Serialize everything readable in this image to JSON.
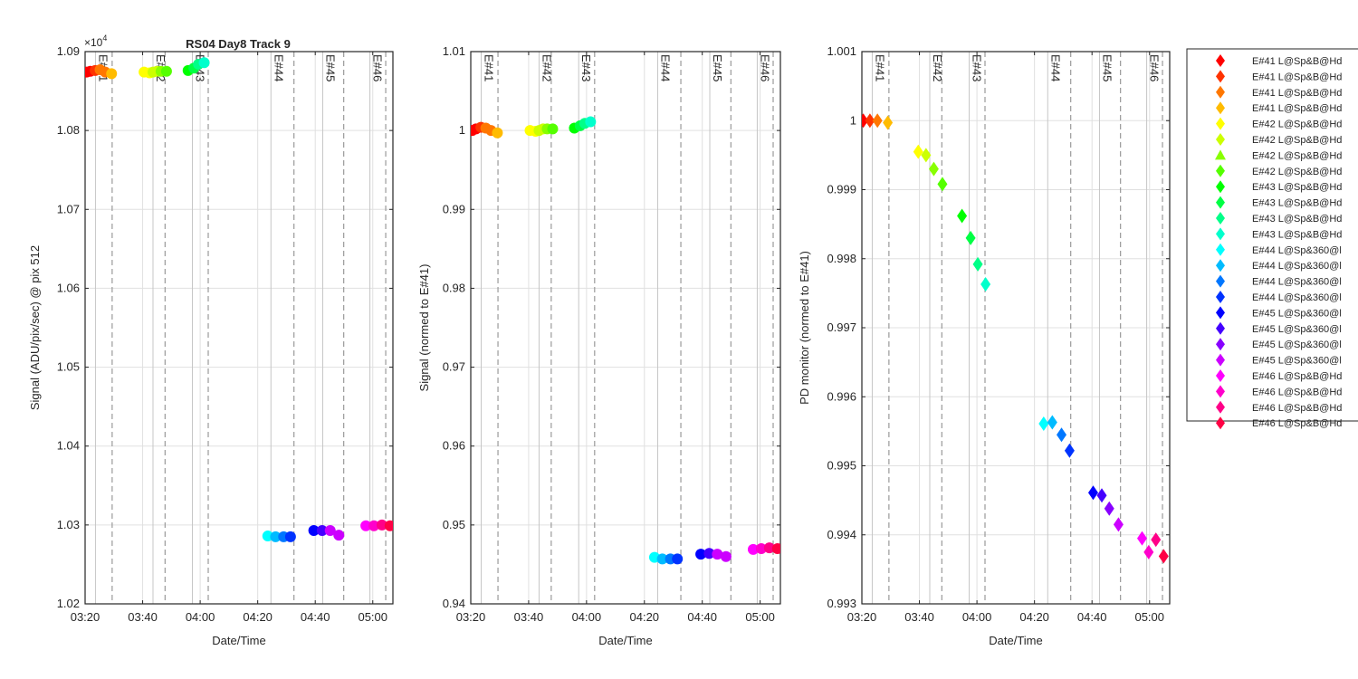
{
  "figure_title": "RS04 Day8 Track 9",
  "exponent_label": "×10",
  "exponent_power": "4",
  "xlabel": "Date/Time",
  "x_tick_labels": [
    "03:20",
    "03:40",
    "04:00",
    "04:20",
    "04:40",
    "05:00"
  ],
  "x_tick_minutes": [
    0,
    20,
    40,
    60,
    80,
    100
  ],
  "x_range_minutes": [
    0,
    107
  ],
  "exposure_lines": [
    {
      "label": "E#41",
      "start": 3.6,
      "end": 9.4
    },
    {
      "label": "E#42",
      "start": 23.6,
      "end": 27.8
    },
    {
      "label": "E#43",
      "start": 37.3,
      "end": 42.8
    },
    {
      "label": "E#44",
      "start": 64.6,
      "end": 72.6
    },
    {
      "label": "E#45",
      "start": 82.6,
      "end": 89.9
    },
    {
      "label": "E#46",
      "start": 99.0,
      "end": 104.5
    }
  ],
  "colors": [
    "#ff0000",
    "#ff3300",
    "#ff7700",
    "#ffbb00",
    "#ffff00",
    "#ccff00",
    "#88ff00",
    "#55ff00",
    "#00ff00",
    "#00ff44",
    "#00ff88",
    "#00ffcc",
    "#00ffff",
    "#00bbff",
    "#0077ff",
    "#0033ff",
    "#0000ff",
    "#4400ff",
    "#8800ff",
    "#cc00ff",
    "#ff00ff",
    "#ff00cc",
    "#ff0088",
    "#ff0044"
  ],
  "legend": {
    "position": "outside-right",
    "entries": [
      {
        "label": "E#41 L@Sp&B@Hd",
        "marker": "diamond"
      },
      {
        "label": "E#41 L@Sp&B@Hd",
        "marker": "diamond"
      },
      {
        "label": "E#41 L@Sp&B@Hd",
        "marker": "diamond"
      },
      {
        "label": "E#41 L@Sp&B@Hd",
        "marker": "diamond"
      },
      {
        "label": "E#42 L@Sp&B@Hd",
        "marker": "diamond"
      },
      {
        "label": "E#42 L@Sp&B@Hd",
        "marker": "diamond"
      },
      {
        "label": "E#42 L@Sp&B@Hd",
        "marker": "triangle"
      },
      {
        "label": "E#42 L@Sp&B@Hd",
        "marker": "diamond"
      },
      {
        "label": "E#43 L@Sp&B@Hd",
        "marker": "diamond"
      },
      {
        "label": "E#43 L@Sp&B@Hd",
        "marker": "diamond"
      },
      {
        "label": "E#43 L@Sp&B@Hd",
        "marker": "diamond"
      },
      {
        "label": "E#43 L@Sp&B@Hd",
        "marker": "diamond"
      },
      {
        "label": "E#44 L@Sp&360@l",
        "marker": "diamond"
      },
      {
        "label": "E#44 L@Sp&360@l",
        "marker": "diamond"
      },
      {
        "label": "E#44 L@Sp&360@l",
        "marker": "diamond"
      },
      {
        "label": "E#44 L@Sp&360@l",
        "marker": "diamond"
      },
      {
        "label": "E#45 L@Sp&360@l",
        "marker": "diamond"
      },
      {
        "label": "E#45 L@Sp&360@l",
        "marker": "diamond"
      },
      {
        "label": "E#45 L@Sp&360@l",
        "marker": "diamond"
      },
      {
        "label": "E#45 L@Sp&360@l",
        "marker": "diamond"
      },
      {
        "label": "E#46 L@Sp&B@Hd",
        "marker": "diamond"
      },
      {
        "label": "E#46 L@Sp&B@Hd",
        "marker": "diamond"
      },
      {
        "label": "E#46 L@Sp&B@Hd",
        "marker": "diamond"
      },
      {
        "label": "E#46 L@Sp&B@Hd",
        "marker": "diamond"
      }
    ]
  },
  "chart_data": [
    {
      "type": "scatter",
      "title": "RS04 Day8 Track 9",
      "xlabel": "Date/Time",
      "ylabel": "Signal (ADU/pix/sec) @ pix 512",
      "ylim": [
        10200,
        10900
      ],
      "y_scale_power": 4,
      "yticks": [
        10200,
        10300,
        10400,
        10500,
        10600,
        10700,
        10800,
        10900
      ],
      "ytick_labels": [
        "1.02",
        "1.03",
        "1.04",
        "1.05",
        "1.06",
        "1.07",
        "1.08",
        "1.09"
      ],
      "grid": true,
      "marker": "circle",
      "x": [
        0.5,
        1.8,
        3.5,
        5.2,
        7.0,
        9.2,
        20.5,
        22.4,
        23.6,
        25.0,
        26.4,
        28.3,
        35.8,
        37.8,
        39.4,
        41.4,
        63.5,
        66.2,
        69.0,
        71.4,
        79.5,
        82.4,
        85.2,
        88.2,
        97.6,
        100.4,
        103.2,
        106.0
      ],
      "values": [
        10874,
        10875,
        10876,
        10877,
        10874,
        10872,
        10874,
        10873,
        10874,
        10875,
        10875,
        10875,
        10876,
        10879,
        10884,
        10886,
        10286,
        10285,
        10285,
        10285,
        10293,
        10293,
        10293,
        10287,
        10299,
        10299,
        10300,
        10299
      ],
      "color_index": [
        0,
        0,
        1,
        2,
        2,
        3,
        4,
        4,
        5,
        5,
        6,
        7,
        8,
        9,
        10,
        11,
        12,
        13,
        14,
        15,
        16,
        17,
        19,
        19,
        20,
        21,
        22,
        23
      ]
    },
    {
      "type": "scatter",
      "title": "",
      "xlabel": "Date/Time",
      "ylabel": "Signal (normed to E#41)",
      "ylim": [
        0.94,
        1.01
      ],
      "yticks": [
        0.94,
        0.95,
        0.96,
        0.97,
        0.98,
        0.99,
        1.0,
        1.01
      ],
      "ytick_labels": [
        "0.94",
        "0.95",
        "0.96",
        "0.97",
        "0.98",
        "0.99",
        "1",
        "1.01"
      ],
      "grid": true,
      "marker": "circle",
      "x": [
        0.5,
        1.8,
        3.5,
        5.2,
        7.0,
        9.2,
        20.5,
        22.4,
        23.6,
        25.0,
        26.4,
        28.3,
        35.8,
        37.8,
        39.4,
        41.4,
        63.5,
        66.2,
        69.0,
        71.4,
        79.5,
        82.4,
        85.2,
        88.2,
        97.6,
        100.4,
        103.2,
        106.0
      ],
      "values": [
        1.0,
        1.0002,
        1.0004,
        1.0003,
        1.0,
        0.9997,
        1.0,
        0.9999,
        1.0,
        1.0002,
        1.0002,
        1.0002,
        1.0003,
        1.0006,
        1.0009,
        1.0011,
        0.9459,
        0.9457,
        0.9457,
        0.9457,
        0.9463,
        0.9464,
        0.9463,
        0.946,
        0.9469,
        0.947,
        0.9471,
        0.947
      ],
      "color_index": [
        0,
        0,
        1,
        2,
        2,
        3,
        4,
        4,
        5,
        5,
        6,
        7,
        8,
        9,
        10,
        11,
        12,
        13,
        14,
        15,
        16,
        17,
        19,
        19,
        20,
        21,
        22,
        23
      ]
    },
    {
      "type": "scatter",
      "title": "",
      "xlabel": "Date/Time",
      "ylabel": "PD monitor (normed to E#41)",
      "ylim": [
        0.993,
        1.001
      ],
      "yticks": [
        0.993,
        0.994,
        0.995,
        0.996,
        0.997,
        0.998,
        0.999,
        1.0,
        1.001
      ],
      "ytick_labels": [
        "0.993",
        "0.994",
        "0.995",
        "0.996",
        "0.997",
        "0.998",
        "0.999",
        "1",
        "1.001"
      ],
      "grid": true,
      "marker": "diamond",
      "x": [
        0.5,
        2.8,
        5.4,
        9.0,
        19.6,
        22.3,
        25.0,
        28.0,
        34.8,
        37.8,
        40.3,
        43.0,
        63.2,
        66.2,
        69.4,
        72.2,
        80.4,
        83.4,
        86.0,
        89.2,
        97.4,
        99.7,
        102.2,
        104.9
      ],
      "values": [
        1.0,
        1.0,
        1.0,
        0.99997,
        0.99955,
        0.9995,
        0.9993,
        0.99908,
        0.99862,
        0.9983,
        0.99792,
        0.99763,
        0.99561,
        0.99563,
        0.99545,
        0.99522,
        0.99461,
        0.99457,
        0.99438,
        0.99415,
        0.99395,
        0.99375,
        0.99393,
        0.99369
      ],
      "color_index": [
        0,
        1,
        2,
        3,
        4,
        5,
        6,
        7,
        8,
        9,
        10,
        11,
        12,
        13,
        14,
        15,
        16,
        17,
        18,
        19,
        20,
        21,
        22,
        23
      ]
    }
  ]
}
